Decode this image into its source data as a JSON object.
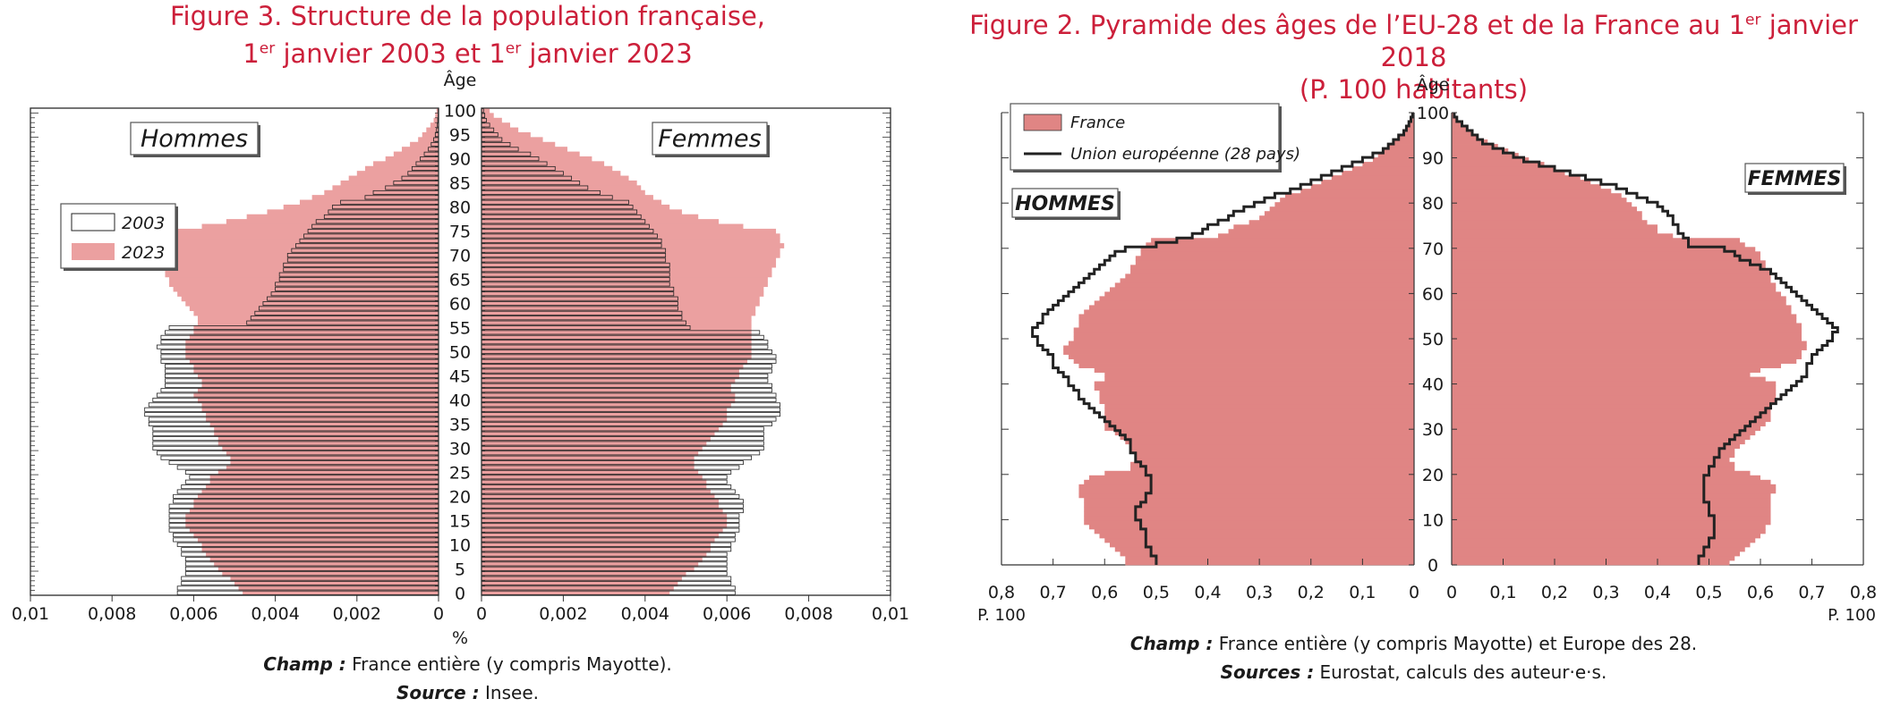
{
  "figure3": {
    "title_line1": "Figure 3. Structure de la population française,",
    "title_line2": "1er janvier 2003 et 1er janvier 2023",
    "champ_label": "Champ :",
    "champ_text": " France entière (y compris Mayotte).",
    "source_label": "Source :",
    "source_text": " Insee."
  },
  "figure2": {
    "title_line1": "Figure 2. Pyramide des âges de l’EU-28 et de la France au 1er janvier 2018",
    "title_line2": "(P. 100 habitants)",
    "champ_label": "Champ :",
    "champ_text": " France entière (y compris Mayotte) et Europe des 28.",
    "source_label": "Sources :",
    "source_text": " Eurostat, calculs des auteur·e·s."
  },
  "chart_data": [
    {
      "type": "bar",
      "subtype": "population-pyramid",
      "title": "Figure 3. Structure de la population française, 1er janvier 2003 et 1er janvier 2023",
      "ylabel": "Âge",
      "xlabel": "%",
      "panel_labels": [
        "Hommes",
        "Femmes"
      ],
      "xlim": [
        0,
        0.01
      ],
      "x_ticks_left": [
        "0,01",
        "0,008",
        "0,006",
        "0,004",
        "0,002",
        "0"
      ],
      "x_ticks_right": [
        "0",
        "0,002",
        "0,004",
        "0,006",
        "0,008",
        "0,01"
      ],
      "y_ticks": [
        "0",
        "5",
        "10",
        "15",
        "20",
        "25",
        "30",
        "35",
        "40",
        "45",
        "50",
        "55",
        "60",
        "65",
        "70",
        "75",
        "80",
        "85",
        "90",
        "95",
        "100"
      ],
      "legend": {
        "position": "left",
        "entries": [
          "2003",
          "2023"
        ]
      },
      "colors": {
        "2003": "#ffffff",
        "2023": "#eba0a0"
      },
      "age_step": 1,
      "age_start": 0,
      "series": [
        {
          "name": "2003",
          "sex": "Hommes",
          "values": [
            0.0064,
            0.0064,
            0.0063,
            0.0063,
            0.0062,
            0.0062,
            0.0062,
            0.0062,
            0.0063,
            0.0063,
            0.0064,
            0.0065,
            0.0065,
            0.0066,
            0.0066,
            0.0066,
            0.0066,
            0.0066,
            0.0066,
            0.0065,
            0.0065,
            0.0064,
            0.0063,
            0.0062,
            0.0061,
            0.0062,
            0.0064,
            0.0066,
            0.0068,
            0.0069,
            0.007,
            0.007,
            0.007,
            0.007,
            0.007,
            0.0071,
            0.0071,
            0.0072,
            0.0072,
            0.0071,
            0.007,
            0.0069,
            0.0068,
            0.0067,
            0.0067,
            0.0067,
            0.0067,
            0.0067,
            0.0068,
            0.0068,
            0.0068,
            0.0069,
            0.0068,
            0.0068,
            0.0067,
            0.0066,
            0.0047,
            0.0046,
            0.0045,
            0.0044,
            0.0043,
            0.0042,
            0.0041,
            0.004,
            0.004,
            0.0039,
            0.0039,
            0.0038,
            0.0038,
            0.0037,
            0.0037,
            0.0036,
            0.0035,
            0.0034,
            0.0033,
            0.0032,
            0.0031,
            0.003,
            0.0028,
            0.0027,
            0.0026,
            0.0024,
            0.0018,
            0.0016,
            0.0013,
            0.0011,
            0.0009,
            0.00075,
            0.00065,
            0.00055,
            0.00045,
            0.00035,
            0.00025,
            0.00018,
            0.00012,
            8e-05,
            5e-05,
            3e-05,
            2e-05,
            1e-05,
            1e-05
          ]
        },
        {
          "name": "2023",
          "sex": "Hommes",
          "values": [
            0.0048,
            0.0049,
            0.005,
            0.0051,
            0.0053,
            0.0054,
            0.0055,
            0.0056,
            0.0057,
            0.0058,
            0.0058,
            0.0059,
            0.006,
            0.0061,
            0.0062,
            0.0062,
            0.0062,
            0.0061,
            0.006,
            0.006,
            0.0059,
            0.0058,
            0.0057,
            0.0056,
            0.0056,
            0.0054,
            0.0052,
            0.0051,
            0.0051,
            0.0052,
            0.0053,
            0.0054,
            0.0054,
            0.0055,
            0.0055,
            0.0056,
            0.0057,
            0.0057,
            0.0058,
            0.0058,
            0.0059,
            0.006,
            0.0059,
            0.0058,
            0.0058,
            0.0059,
            0.006,
            0.006,
            0.0061,
            0.0062,
            0.0062,
            0.0062,
            0.0062,
            0.0061,
            0.006,
            0.006,
            0.0059,
            0.0059,
            0.006,
            0.0061,
            0.0062,
            0.0063,
            0.0064,
            0.0065,
            0.0066,
            0.0066,
            0.0067,
            0.0067,
            0.0068,
            0.0068,
            0.0068,
            0.0069,
            0.0068,
            0.0068,
            0.0067,
            0.0067,
            0.0058,
            0.0052,
            0.0047,
            0.0042,
            0.0038,
            0.0034,
            0.0031,
            0.0028,
            0.0026,
            0.0024,
            0.0022,
            0.002,
            0.0018,
            0.0016,
            0.0013,
            0.0011,
            0.0009,
            0.0007,
            0.0005,
            0.0004,
            0.0003,
            0.0002,
            0.00012,
            8e-05,
            5e-05
          ]
        },
        {
          "name": "2003",
          "sex": "Femmes",
          "values": [
            0.0062,
            0.0062,
            0.0061,
            0.0061,
            0.006,
            0.006,
            0.006,
            0.006,
            0.006,
            0.0061,
            0.0061,
            0.0062,
            0.0062,
            0.0063,
            0.0063,
            0.0063,
            0.0063,
            0.0064,
            0.0064,
            0.0064,
            0.0063,
            0.0062,
            0.0061,
            0.006,
            0.006,
            0.0061,
            0.0063,
            0.0064,
            0.0066,
            0.0068,
            0.0069,
            0.0069,
            0.0069,
            0.0069,
            0.0069,
            0.0071,
            0.0072,
            0.0073,
            0.0073,
            0.0073,
            0.0072,
            0.0072,
            0.0071,
            0.0071,
            0.007,
            0.007,
            0.0071,
            0.0071,
            0.0072,
            0.0072,
            0.0071,
            0.007,
            0.007,
            0.0069,
            0.0068,
            0.0051,
            0.005,
            0.0049,
            0.0049,
            0.0048,
            0.0048,
            0.0048,
            0.0047,
            0.0047,
            0.0046,
            0.0046,
            0.0046,
            0.0046,
            0.0046,
            0.0045,
            0.0045,
            0.0045,
            0.0044,
            0.0044,
            0.0043,
            0.0042,
            0.0041,
            0.004,
            0.0039,
            0.0038,
            0.0037,
            0.0036,
            0.0032,
            0.0029,
            0.0026,
            0.0024,
            0.0022,
            0.002,
            0.0018,
            0.0016,
            0.0014,
            0.0012,
            0.0009,
            0.0007,
            0.0005,
            0.0004,
            0.0003,
            0.0002,
            0.00012,
            8e-05,
            5e-05
          ]
        },
        {
          "name": "2023",
          "sex": "Femmes",
          "values": [
            0.0046,
            0.0047,
            0.0048,
            0.0049,
            0.005,
            0.0052,
            0.0053,
            0.0054,
            0.0055,
            0.0056,
            0.0056,
            0.0057,
            0.0058,
            0.0059,
            0.006,
            0.006,
            0.006,
            0.0059,
            0.0058,
            0.0058,
            0.0057,
            0.0056,
            0.0055,
            0.0055,
            0.0054,
            0.0053,
            0.0052,
            0.0052,
            0.0052,
            0.0053,
            0.0054,
            0.0055,
            0.0056,
            0.0057,
            0.0058,
            0.0059,
            0.006,
            0.006,
            0.006,
            0.0061,
            0.0062,
            0.0062,
            0.0061,
            0.0061,
            0.0062,
            0.0063,
            0.0063,
            0.0064,
            0.0065,
            0.0066,
            0.0066,
            0.0066,
            0.0066,
            0.0066,
            0.0066,
            0.0066,
            0.0066,
            0.0066,
            0.0067,
            0.0067,
            0.0068,
            0.0068,
            0.0069,
            0.0069,
            0.007,
            0.007,
            0.0071,
            0.0071,
            0.0072,
            0.0072,
            0.0073,
            0.0073,
            0.0074,
            0.0073,
            0.0073,
            0.0072,
            0.0064,
            0.0058,
            0.0053,
            0.0049,
            0.0046,
            0.0044,
            0.0042,
            0.004,
            0.0039,
            0.0038,
            0.0036,
            0.0034,
            0.0032,
            0.003,
            0.0027,
            0.0024,
            0.0021,
            0.0018,
            0.0015,
            0.0012,
            0.0009,
            0.0007,
            0.0005,
            0.0003,
            0.0002
          ]
        }
      ]
    },
    {
      "type": "bar",
      "subtype": "population-pyramid",
      "title": "Figure 2. Pyramide des âges de l’EU-28 et de la France au 1er janvier 2018 (P. 100 habitants)",
      "ylabel": "Âge",
      "xlabel": "P. 100",
      "panel_labels": [
        "HOMMES",
        "FEMMES"
      ],
      "xlim": [
        0,
        0.8
      ],
      "x_ticks_left": [
        "0,8",
        "0,7",
        "0,6",
        "0,5",
        "0,4",
        "0,3",
        "0,2",
        "0,1",
        "0"
      ],
      "x_ticks_right": [
        "0",
        "0,1",
        "0,2",
        "0,3",
        "0,4",
        "0,5",
        "0,6",
        "0,7",
        "0,8"
      ],
      "y_ticks": [
        "0",
        "10",
        "20",
        "30",
        "40",
        "50",
        "60",
        "70",
        "80",
        "90",
        "100"
      ],
      "legend": {
        "position": "top-left",
        "entries": [
          "France",
          "Union européenne (28 pays)"
        ]
      },
      "colors": {
        "France": "#e08584",
        "Union européenne (28 pays)": "#222222"
      },
      "age_step": 1,
      "age_start": 0,
      "series": [
        {
          "name": "France",
          "sex": "HOMMES",
          "values": [
            0.56,
            0.56,
            0.57,
            0.58,
            0.59,
            0.6,
            0.61,
            0.62,
            0.63,
            0.64,
            0.64,
            0.64,
            0.64,
            0.64,
            0.64,
            0.65,
            0.65,
            0.65,
            0.64,
            0.63,
            0.6,
            0.55,
            0.55,
            0.54,
            0.54,
            0.55,
            0.55,
            0.56,
            0.57,
            0.58,
            0.6,
            0.6,
            0.6,
            0.6,
            0.6,
            0.6,
            0.61,
            0.61,
            0.61,
            0.62,
            0.62,
            0.6,
            0.6,
            0.62,
            0.65,
            0.66,
            0.67,
            0.68,
            0.68,
            0.67,
            0.66,
            0.66,
            0.66,
            0.65,
            0.65,
            0.65,
            0.64,
            0.63,
            0.62,
            0.61,
            0.6,
            0.59,
            0.58,
            0.57,
            0.56,
            0.55,
            0.55,
            0.54,
            0.54,
            0.53,
            0.53,
            0.52,
            0.51,
            0.38,
            0.36,
            0.35,
            0.32,
            0.3,
            0.29,
            0.28,
            0.27,
            0.26,
            0.25,
            0.22,
            0.2,
            0.18,
            0.16,
            0.14,
            0.12,
            0.1,
            0.08,
            0.07,
            0.06,
            0.05,
            0.04,
            0.03,
            0.02,
            0.015,
            0.01,
            0.006,
            0.003
          ]
        },
        {
          "name": "Union européenne (28 pays)",
          "sex": "HOMMES",
          "values": [
            0.5,
            0.5,
            0.51,
            0.51,
            0.52,
            0.52,
            0.52,
            0.52,
            0.53,
            0.53,
            0.54,
            0.54,
            0.54,
            0.53,
            0.52,
            0.52,
            0.51,
            0.51,
            0.51,
            0.51,
            0.52,
            0.52,
            0.53,
            0.54,
            0.54,
            0.55,
            0.55,
            0.55,
            0.56,
            0.57,
            0.58,
            0.59,
            0.6,
            0.61,
            0.62,
            0.63,
            0.64,
            0.65,
            0.65,
            0.66,
            0.67,
            0.67,
            0.68,
            0.69,
            0.7,
            0.7,
            0.7,
            0.71,
            0.72,
            0.73,
            0.73,
            0.74,
            0.74,
            0.73,
            0.72,
            0.72,
            0.71,
            0.7,
            0.69,
            0.68,
            0.67,
            0.66,
            0.65,
            0.64,
            0.63,
            0.62,
            0.61,
            0.6,
            0.59,
            0.58,
            0.56,
            0.5,
            0.46,
            0.43,
            0.41,
            0.4,
            0.38,
            0.36,
            0.35,
            0.33,
            0.31,
            0.29,
            0.27,
            0.24,
            0.22,
            0.2,
            0.18,
            0.16,
            0.14,
            0.12,
            0.1,
            0.08,
            0.06,
            0.05,
            0.04,
            0.03,
            0.02,
            0.015,
            0.01,
            0.006,
            0.003
          ]
        },
        {
          "name": "France",
          "sex": "FEMMES",
          "values": [
            0.54,
            0.55,
            0.56,
            0.57,
            0.58,
            0.59,
            0.6,
            0.61,
            0.61,
            0.62,
            0.62,
            0.62,
            0.62,
            0.62,
            0.62,
            0.62,
            0.63,
            0.63,
            0.62,
            0.6,
            0.58,
            0.55,
            0.55,
            0.54,
            0.55,
            0.55,
            0.56,
            0.57,
            0.58,
            0.59,
            0.6,
            0.61,
            0.62,
            0.62,
            0.62,
            0.62,
            0.63,
            0.63,
            0.63,
            0.63,
            0.63,
            0.61,
            0.58,
            0.6,
            0.64,
            0.67,
            0.68,
            0.68,
            0.69,
            0.69,
            0.68,
            0.68,
            0.68,
            0.68,
            0.67,
            0.67,
            0.66,
            0.66,
            0.65,
            0.65,
            0.64,
            0.63,
            0.63,
            0.62,
            0.62,
            0.62,
            0.61,
            0.61,
            0.6,
            0.6,
            0.59,
            0.57,
            0.56,
            0.43,
            0.4,
            0.4,
            0.38,
            0.37,
            0.37,
            0.36,
            0.35,
            0.34,
            0.33,
            0.31,
            0.29,
            0.27,
            0.25,
            0.22,
            0.2,
            0.18,
            0.15,
            0.13,
            0.11,
            0.09,
            0.07,
            0.05,
            0.04,
            0.03,
            0.02,
            0.01,
            0.005
          ]
        },
        {
          "name": "Union européenne (28 pays)",
          "sex": "FEMMES",
          "values": [
            0.48,
            0.48,
            0.49,
            0.49,
            0.5,
            0.5,
            0.51,
            0.51,
            0.51,
            0.51,
            0.51,
            0.5,
            0.5,
            0.5,
            0.49,
            0.49,
            0.49,
            0.49,
            0.49,
            0.49,
            0.5,
            0.5,
            0.51,
            0.51,
            0.52,
            0.52,
            0.53,
            0.54,
            0.55,
            0.56,
            0.57,
            0.58,
            0.59,
            0.6,
            0.61,
            0.62,
            0.63,
            0.64,
            0.65,
            0.66,
            0.67,
            0.68,
            0.69,
            0.69,
            0.69,
            0.7,
            0.7,
            0.71,
            0.72,
            0.73,
            0.74,
            0.74,
            0.75,
            0.74,
            0.73,
            0.72,
            0.71,
            0.7,
            0.69,
            0.68,
            0.67,
            0.66,
            0.65,
            0.64,
            0.63,
            0.62,
            0.6,
            0.58,
            0.56,
            0.55,
            0.53,
            0.46,
            0.46,
            0.45,
            0.44,
            0.44,
            0.43,
            0.43,
            0.42,
            0.41,
            0.4,
            0.38,
            0.36,
            0.34,
            0.32,
            0.29,
            0.26,
            0.23,
            0.2,
            0.17,
            0.14,
            0.12,
            0.1,
            0.08,
            0.06,
            0.05,
            0.04,
            0.03,
            0.02,
            0.01,
            0.005
          ]
        }
      ]
    }
  ]
}
